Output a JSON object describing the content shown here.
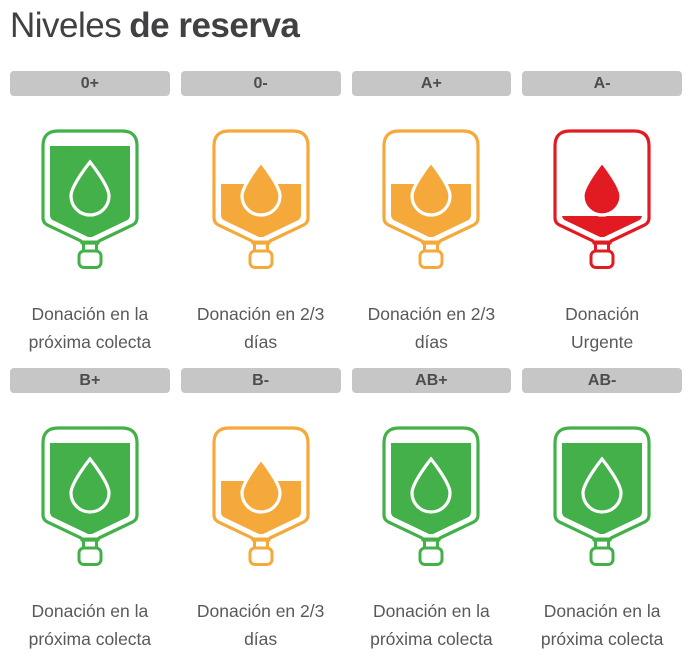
{
  "title": {
    "normal": "Niveles",
    "bold": "de reserva"
  },
  "theme": {
    "title_text": "#414042",
    "header_bg": "#C6C6C6",
    "header_text": "#4D4D4D",
    "status_text": "#58595B",
    "green": "#44B049",
    "orange": "#F5A93B",
    "red": "#E21B22"
  },
  "cards": [
    {
      "type": "0+",
      "level": "full",
      "color": "#44B049",
      "status": "Donación en la\npróxima colecta"
    },
    {
      "type": "0-",
      "level": "two-thirds",
      "color": "#F5A93B",
      "status": "Donación en 2/3\ndías"
    },
    {
      "type": "A+",
      "level": "two-thirds",
      "color": "#F5A93B",
      "status": "Donación en 2/3\ndías"
    },
    {
      "type": "A-",
      "level": "low",
      "color": "#E21B22",
      "status": "Donación\nUrgente"
    },
    {
      "type": "B+",
      "level": "full",
      "color": "#44B049",
      "status": "Donación en la\npróxima colecta"
    },
    {
      "type": "B-",
      "level": "two-thirds",
      "color": "#F5A93B",
      "status": "Donación en 2/3\ndías"
    },
    {
      "type": "AB+",
      "level": "full",
      "color": "#44B049",
      "status": "Donación en la\npróxima colecta"
    },
    {
      "type": "AB-",
      "level": "full",
      "color": "#44B049",
      "status": "Donación en la\npróxima colecta"
    }
  ]
}
